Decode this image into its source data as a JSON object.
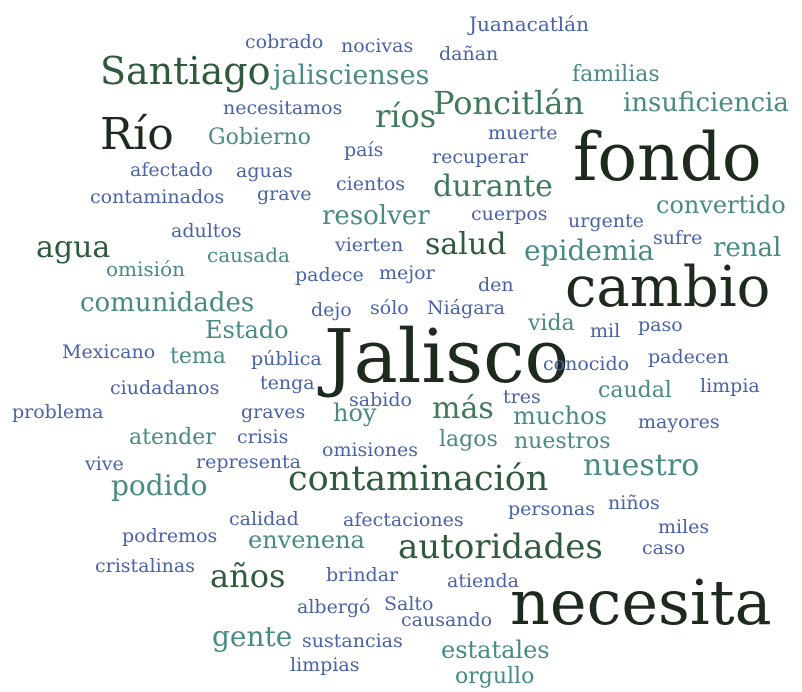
{
  "colors": {
    "dark": "#1f2a1f",
    "darkgreen": "#2f5a3c",
    "green": "#3f7a5a",
    "teal": "#4a8a86",
    "blue": "#4a62a8",
    "lightblue": "#5a76b8"
  },
  "words": [
    {
      "text": "fondo",
      "color": "dark"
    },
    {
      "text": "cambio",
      "color": "dark"
    },
    {
      "text": "Jalisco",
      "color": "dark"
    },
    {
      "text": "necesita",
      "color": "dark"
    },
    {
      "text": "Río",
      "color": "dark"
    },
    {
      "text": "Santiago",
      "color": "darkgreen"
    },
    {
      "text": "Poncitlán",
      "color": "green"
    },
    {
      "text": "contaminación",
      "color": "darkgreen"
    },
    {
      "text": "autoridades",
      "color": "darkgreen"
    },
    {
      "text": "durante",
      "color": "green"
    },
    {
      "text": "nuestro",
      "color": "teal"
    },
    {
      "text": "agua",
      "color": "darkgreen"
    },
    {
      "text": "salud",
      "color": "darkgreen"
    },
    {
      "text": "epidemia",
      "color": "teal"
    },
    {
      "text": "años",
      "color": "darkgreen"
    },
    {
      "text": "ríos",
      "color": "green"
    },
    {
      "text": "más",
      "color": "green"
    },
    {
      "text": "jaliscienses",
      "color": "teal"
    },
    {
      "text": "insuficiencia",
      "color": "teal"
    },
    {
      "text": "resolver",
      "color": "teal"
    },
    {
      "text": "comunidades",
      "color": "teal"
    },
    {
      "text": "renal",
      "color": "teal"
    },
    {
      "text": "podido",
      "color": "teal"
    },
    {
      "text": "convertido",
      "color": "teal"
    },
    {
      "text": "envenena",
      "color": "teal"
    },
    {
      "text": "gente",
      "color": "teal"
    },
    {
      "text": "Estado",
      "color": "teal"
    },
    {
      "text": "familias",
      "color": "teal"
    },
    {
      "text": "Gobierno",
      "color": "teal"
    },
    {
      "text": "caudal",
      "color": "teal"
    },
    {
      "text": "muchos",
      "color": "teal"
    },
    {
      "text": "nuestros",
      "color": "teal"
    },
    {
      "text": "lagos",
      "color": "teal"
    },
    {
      "text": "atender",
      "color": "teal"
    },
    {
      "text": "tema",
      "color": "teal"
    },
    {
      "text": "vida",
      "color": "teal"
    },
    {
      "text": "hoy",
      "color": "teal"
    },
    {
      "text": "estatales",
      "color": "teal"
    },
    {
      "text": "orgullo",
      "color": "teal"
    },
    {
      "text": "omisión",
      "color": "teal"
    },
    {
      "text": "causada",
      "color": "teal"
    },
    {
      "text": "Juanacatlán",
      "color": "blue"
    },
    {
      "text": "cobrado",
      "color": "blue"
    },
    {
      "text": "nocivas",
      "color": "blue"
    },
    {
      "text": "dañan",
      "color": "blue"
    },
    {
      "text": "necesitamos",
      "color": "blue"
    },
    {
      "text": "muerte",
      "color": "blue"
    },
    {
      "text": "país",
      "color": "blue"
    },
    {
      "text": "recuperar",
      "color": "blue"
    },
    {
      "text": "afectado",
      "color": "blue"
    },
    {
      "text": "aguas",
      "color": "blue"
    },
    {
      "text": "cientos",
      "color": "blue"
    },
    {
      "text": "contaminados",
      "color": "blue"
    },
    {
      "text": "grave",
      "color": "blue"
    },
    {
      "text": "cuerpos",
      "color": "blue"
    },
    {
      "text": "urgente",
      "color": "blue"
    },
    {
      "text": "adultos",
      "color": "blue"
    },
    {
      "text": "vierten",
      "color": "blue"
    },
    {
      "text": "sufre",
      "color": "blue"
    },
    {
      "text": "padece",
      "color": "blue"
    },
    {
      "text": "mejor",
      "color": "blue"
    },
    {
      "text": "den",
      "color": "blue"
    },
    {
      "text": "dejo",
      "color": "blue"
    },
    {
      "text": "sólo",
      "color": "blue"
    },
    {
      "text": "Niágara",
      "color": "blue"
    },
    {
      "text": "mil",
      "color": "blue"
    },
    {
      "text": "paso",
      "color": "blue"
    },
    {
      "text": "Mexicano",
      "color": "blue"
    },
    {
      "text": "pública",
      "color": "blue"
    },
    {
      "text": "conocido",
      "color": "blue"
    },
    {
      "text": "padecen",
      "color": "blue"
    },
    {
      "text": "ciudadanos",
      "color": "blue"
    },
    {
      "text": "tenga",
      "color": "blue"
    },
    {
      "text": "sabido",
      "color": "blue"
    },
    {
      "text": "tres",
      "color": "blue"
    },
    {
      "text": "limpia",
      "color": "blue"
    },
    {
      "text": "problema",
      "color": "blue"
    },
    {
      "text": "graves",
      "color": "blue"
    },
    {
      "text": "mayores",
      "color": "blue"
    },
    {
      "text": "crisis",
      "color": "blue"
    },
    {
      "text": "omisiones",
      "color": "blue"
    },
    {
      "text": "vive",
      "color": "blue"
    },
    {
      "text": "representa",
      "color": "blue"
    },
    {
      "text": "personas",
      "color": "blue"
    },
    {
      "text": "niños",
      "color": "blue"
    },
    {
      "text": "calidad",
      "color": "blue"
    },
    {
      "text": "afectaciones",
      "color": "blue"
    },
    {
      "text": "miles",
      "color": "blue"
    },
    {
      "text": "podremos",
      "color": "blue"
    },
    {
      "text": "caso",
      "color": "blue"
    },
    {
      "text": "cristalinas",
      "color": "blue"
    },
    {
      "text": "brindar",
      "color": "blue"
    },
    {
      "text": "atienda",
      "color": "blue"
    },
    {
      "text": "albergó",
      "color": "blue"
    },
    {
      "text": "Salto",
      "color": "blue"
    },
    {
      "text": "causando",
      "color": "blue"
    },
    {
      "text": "sustancias",
      "color": "blue"
    },
    {
      "text": "limpias",
      "color": "blue"
    }
  ]
}
